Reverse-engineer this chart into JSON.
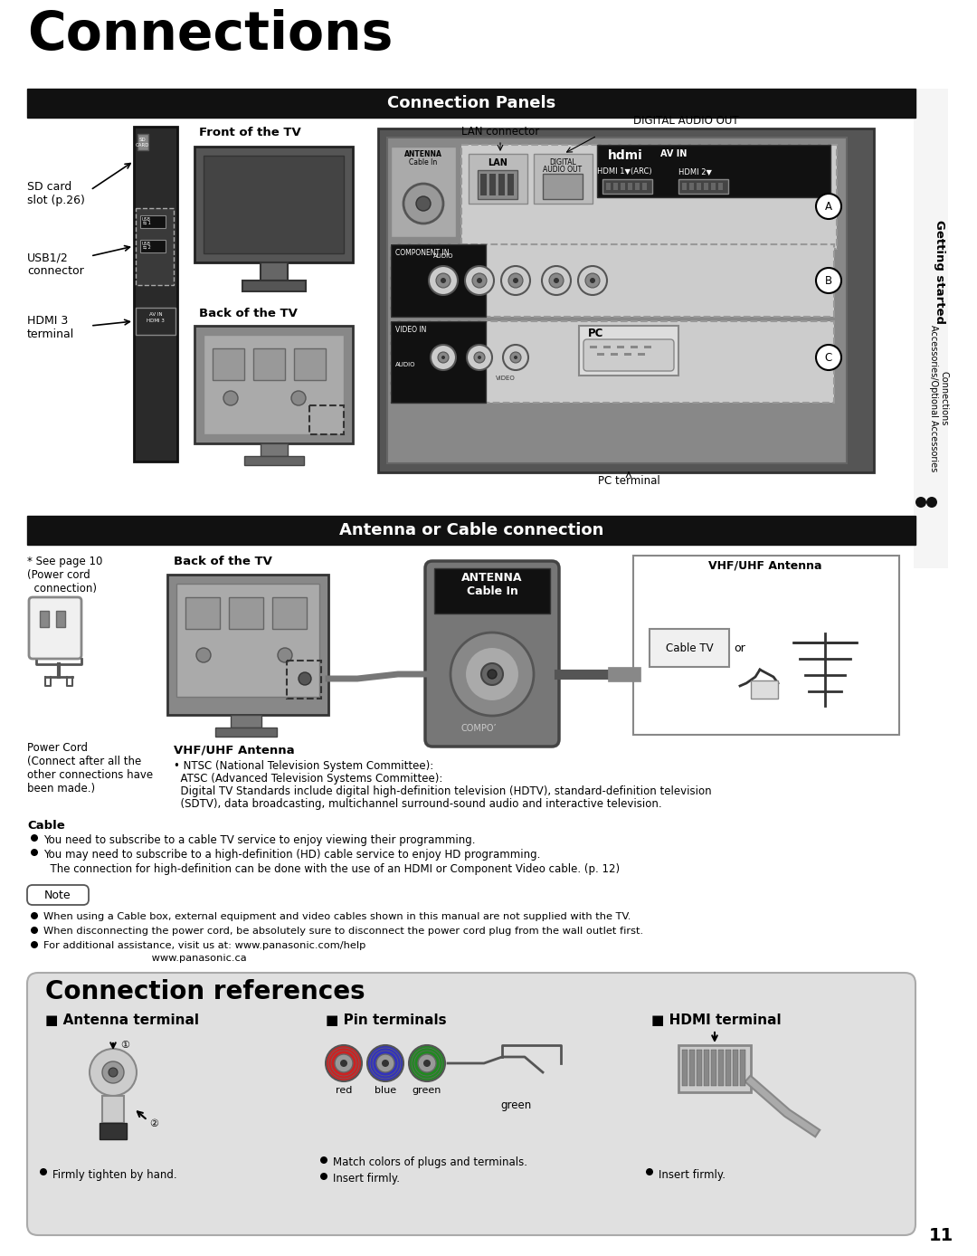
{
  "title": "Connections",
  "page_number": "11",
  "bg_color": "#ffffff",
  "section1_title": "Connection Panels",
  "section2_title": "Antenna or Cable connection",
  "section3_title": "Connection references",
  "header_bg": "#111111",
  "header_fg": "#ffffff",
  "ref_box_bg": "#e0e0e0",
  "front_tv_label": "Front of the TV",
  "back_tv_label": "Back of the TV",
  "lan_label": "LAN connector",
  "digital_label": "DIGITAL AUDIO OUT",
  "pc_terminal": "PC terminal",
  "sd_card_label": "SD card\nslot (p.26)",
  "usb_label": "USB1/2\nconnector",
  "hdmi3_label": "HDMI 3\nterminal",
  "seepage_label": "* See page 10\n(Power cord\n  connection)",
  "powercord_label": "Power Cord\n(Connect after all the\nother connections have\nbeen made.)",
  "vhfuhf_title": "VHF/UHF Antenna",
  "vhfuhf_bullet1": "• NTSC (National Television System Committee):",
  "vhfuhf_bullet2": "  ATSC (Advanced Television Systems Committee):",
  "vhfuhf_bullet3": "  Digital TV Standards include digital high-definition television (HDTV), standard-definition television",
  "vhfuhf_bullet4": "  (SDTV), data broadcasting, multichannel surround-sound audio and interactive television.",
  "cable_title": "Cable",
  "cable_bullet1": "You need to subscribe to a cable TV service to enjoy viewing their programming.",
  "cable_bullet2": "You may need to subscribe to a high-definition (HD) cable service to enjoy HD programming.",
  "cable_bullet2b": "  The connection for high-definition can be done with the use of an HDMI or Component Video cable. (p. 12)",
  "note_bullet1": "When using a Cable box, external equipment and video cables shown in this manual are not supplied with the TV.",
  "note_bullet2": "When disconnecting the power cord, be absolutely sure to disconnect the power cord plug from the wall outlet first.",
  "note_bullet3": "For additional assistance, visit us at: www.panasonic.com/help",
  "note_bullet3b": "                                 www.panasonic.ca",
  "ref_antenna_title": "Antenna terminal",
  "ref_pin_title": "Pin terminals",
  "ref_hdmi_title": "HDMI terminal",
  "ref_antenna_bullet": "Firmly tighten by hand.",
  "ref_pin_bullet1": "Match colors of plugs and terminals.",
  "ref_pin_bullet2": "Insert firmly.",
  "ref_hdmi_bullet": "Insert firmly.",
  "cable_tv_label": "Cable TV",
  "or_label": "or",
  "vhf_antenna_label": "VHF/UHF Antenna",
  "antenna_label": "ANTENNA",
  "cable_in_label": "Cable In",
  "compo_label": "COMPO’",
  "red_label": "red",
  "blue_label": "blue",
  "green_label": "green",
  "getting_started": "Getting started",
  "side_text2": "Connections\nAccessories/Optional Accessories"
}
